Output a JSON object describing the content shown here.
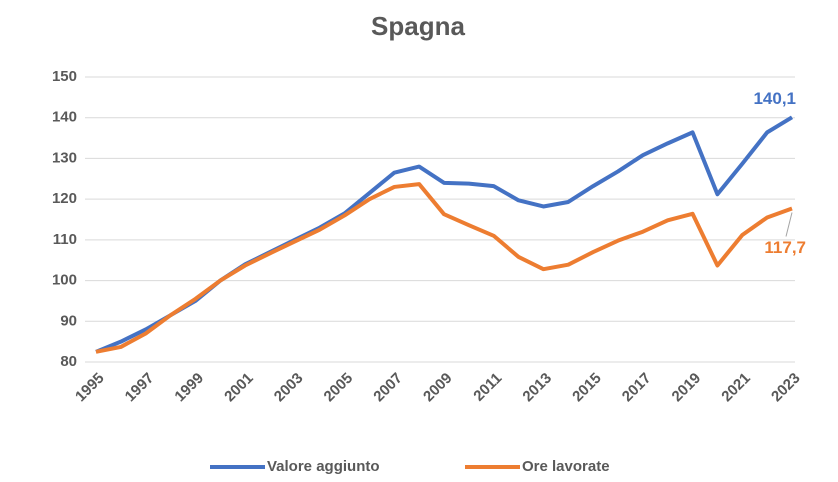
{
  "chart_data": {
    "type": "line",
    "title": "Spagna",
    "x": [
      1995,
      1996,
      1997,
      1998,
      1999,
      2000,
      2001,
      2002,
      2003,
      2004,
      2005,
      2006,
      2007,
      2008,
      2009,
      2010,
      2011,
      2012,
      2013,
      2014,
      2015,
      2016,
      2017,
      2018,
      2019,
      2020,
      2021,
      2022,
      2023
    ],
    "xticks": [
      1995,
      1997,
      1999,
      2001,
      2003,
      2005,
      2007,
      2009,
      2011,
      2013,
      2015,
      2017,
      2019,
      2021,
      2023
    ],
    "xlim": [
      1995,
      2023
    ],
    "ylim": [
      80,
      150
    ],
    "yticks": [
      80,
      90,
      100,
      110,
      120,
      130,
      140,
      150
    ],
    "grid": true,
    "legend": "bottom",
    "series": [
      {
        "name": "Valore aggiunto",
        "color": "#4472c4",
        "values": [
          82.5,
          85,
          88,
          91.5,
          95,
          100,
          104,
          107,
          110,
          113,
          116.5,
          121.5,
          126.5,
          128,
          124,
          123.8,
          123.2,
          119.7,
          118.2,
          119.3,
          123.2,
          126.8,
          130.8,
          133.7,
          136.4,
          121.2,
          128.7,
          136.4,
          140.1
        ],
        "value_labels": [
          null,
          null,
          null,
          null,
          null,
          null,
          null,
          null,
          null,
          null,
          null,
          null,
          null,
          null,
          null,
          null,
          null,
          null,
          null,
          null,
          null,
          null,
          null,
          null,
          null,
          null,
          null,
          null,
          "140,1"
        ]
      },
      {
        "name": "Ore lavorate",
        "color": "#ed7d31",
        "values": [
          82.5,
          83.7,
          87,
          91.5,
          95.5,
          100,
          103.7,
          106.7,
          109.6,
          112.5,
          116,
          120,
          123,
          123.7,
          116.3,
          113.6,
          111,
          105.8,
          102.8,
          103.9,
          107,
          109.8,
          112,
          114.8,
          116.4,
          103.7,
          111.2,
          115.5,
          117.7
        ],
        "value_labels": [
          null,
          null,
          null,
          null,
          null,
          null,
          null,
          null,
          null,
          null,
          null,
          null,
          null,
          null,
          null,
          null,
          null,
          null,
          null,
          null,
          null,
          null,
          null,
          null,
          null,
          null,
          null,
          null,
          "117,7"
        ]
      }
    ]
  }
}
